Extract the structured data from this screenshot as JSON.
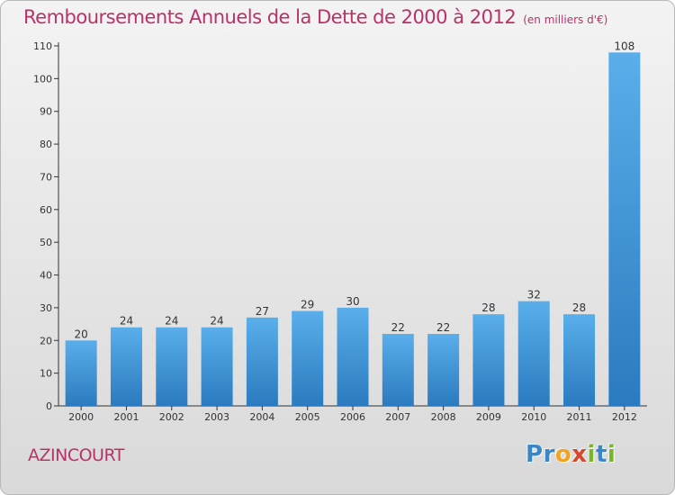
{
  "header": {
    "title": "Remboursements Annuels de la Dette de 2000 à 2012",
    "unit": "(en milliers d'€)"
  },
  "place": "AZINCOURT",
  "logo": {
    "text": "Proxiti",
    "letters": [
      {
        "ch": "P",
        "color": "#3a87c8"
      },
      {
        "ch": "r",
        "color": "#3a87c8"
      },
      {
        "ch": "o",
        "color": "#f2a321"
      },
      {
        "ch": "x",
        "color": "#d6452c"
      },
      {
        "ch": "i",
        "color": "#79b52b"
      },
      {
        "ch": "t",
        "color": "#3a87c8"
      },
      {
        "ch": "i",
        "color": "#79b52b"
      }
    ]
  },
  "colors": {
    "title": "#b8326a",
    "bar_light": "#5aaeea",
    "bar_dark": "#2a7bbf",
    "axis": "#333333"
  },
  "chart_data": {
    "type": "bar",
    "categories": [
      "2000",
      "2001",
      "2002",
      "2003",
      "2004",
      "2005",
      "2006",
      "2007",
      "2008",
      "2009",
      "2010",
      "2011",
      "2012"
    ],
    "values": [
      20,
      24,
      24,
      24,
      27,
      29,
      30,
      22,
      22,
      28,
      32,
      28,
      108
    ],
    "ylim": [
      0,
      110
    ],
    "yticks": [
      0,
      10,
      20,
      30,
      40,
      50,
      60,
      70,
      80,
      90,
      100,
      110
    ],
    "grid": false,
    "data_labels": true
  }
}
